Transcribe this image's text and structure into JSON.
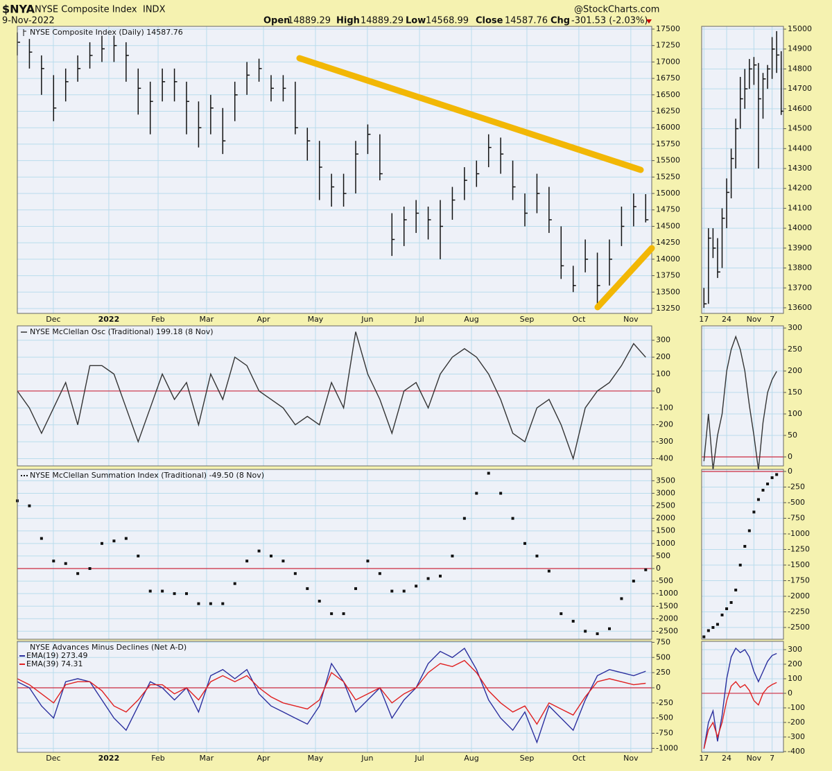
{
  "header": {
    "symbol": "$NYA",
    "name": "NYSE Composite Index",
    "exchange": "INDX",
    "date": "9-Nov-2022",
    "source": "@StockCharts.com",
    "stats": [
      {
        "label": "Open",
        "value": "14889.29"
      },
      {
        "label": "High",
        "value": "14889.29"
      },
      {
        "label": "Low",
        "value": "14568.99"
      },
      {
        "label": "Close",
        "value": "14587.76"
      },
      {
        "label": "Chg",
        "value": "-301.53 (-2.03%)"
      }
    ]
  },
  "chart_data": [
    {
      "type": "ohlc",
      "title": "NYSE Composite Index (Daily) 14587.76",
      "color": "#111111",
      "grid": true,
      "high": [
        17450,
        17350,
        17100,
        16800,
        16900,
        17100,
        17300,
        17400,
        17400,
        17300,
        16900,
        16700,
        16900,
        16900,
        16700,
        16400,
        16500,
        16300,
        16700,
        17000,
        17050,
        16800,
        16800,
        16700,
        16000,
        15800,
        15300,
        15300,
        15800,
        16050,
        15900,
        14700,
        14800,
        14900,
        14800,
        14900,
        15100,
        15400,
        15500,
        15900,
        15850,
        15500,
        15000,
        15300,
        15100,
        14500,
        13900,
        14300,
        14100,
        14300,
        14800,
        15000,
        14990
      ],
      "low": [
        17100,
        16900,
        16500,
        16100,
        16400,
        16700,
        16900,
        17000,
        17000,
        16700,
        16200,
        15900,
        16400,
        16400,
        15900,
        15700,
        15900,
        15600,
        16100,
        16500,
        16700,
        16400,
        16400,
        15900,
        15500,
        14900,
        14800,
        14800,
        15000,
        15600,
        15200,
        14050,
        14200,
        14400,
        14300,
        14000,
        14600,
        14900,
        15100,
        15400,
        15300,
        14900,
        14500,
        14700,
        14400,
        13700,
        13500,
        13800,
        13300,
        13600,
        14200,
        14500,
        14560
      ],
      "close": [
        17300,
        17150,
        16900,
        16300,
        16700,
        16900,
        17100,
        17200,
        17250,
        17100,
        16600,
        16400,
        16700,
        16700,
        16400,
        16000,
        16300,
        15800,
        16500,
        16800,
        16900,
        16600,
        16600,
        16000,
        15800,
        15400,
        15100,
        15000,
        15600,
        15900,
        15300,
        14300,
        14600,
        14700,
        14600,
        14500,
        14900,
        15200,
        15300,
        15700,
        15600,
        15100,
        14700,
        15000,
        14600,
        13900,
        13600,
        14000,
        13600,
        14000,
        14500,
        14800,
        14600
      ],
      "xlim": [
        0,
        52.5
      ],
      "xticks": [
        {
          "value": 2.98,
          "label": "Dec"
        },
        {
          "value": 7.57,
          "label": "2022"
        },
        {
          "value": 11.65,
          "label": "Feb"
        },
        {
          "value": 15.66,
          "label": "Mar"
        },
        {
          "value": 20.37,
          "label": "Apr"
        },
        {
          "value": 24.67,
          "label": "May"
        },
        {
          "value": 28.97,
          "label": "Jun"
        },
        {
          "value": 33.28,
          "label": "Jul"
        },
        {
          "value": 37.58,
          "label": "Aug"
        },
        {
          "value": 42.17,
          "label": "Sep"
        },
        {
          "value": 46.47,
          "label": "Oct"
        },
        {
          "value": 50.77,
          "label": "Nov"
        }
      ],
      "ylim": [
        13176,
        17542
      ],
      "yticks": [
        13250,
        13500,
        13750,
        14000,
        14250,
        14500,
        14750,
        15000,
        15250,
        15500,
        15750,
        16000,
        16250,
        16500,
        16750,
        17000,
        17250,
        17500
      ]
    },
    {
      "type": "ohlc",
      "color": "#111111",
      "grid": true,
      "high": [
        13700,
        14000,
        14000,
        13950,
        14100,
        14250,
        14400,
        14550,
        14760,
        14800,
        14850,
        14860,
        14830,
        14780,
        14820,
        14960,
        14990,
        14889.29
      ],
      "low": [
        13600,
        13620,
        13850,
        13750,
        13800,
        14000,
        14150,
        14300,
        14500,
        14600,
        14700,
        14720,
        14300,
        14550,
        14700,
        14750,
        14780,
        14568.99
      ],
      "close": [
        13620,
        13950,
        13900,
        13780,
        14050,
        14180,
        14350,
        14500,
        14650,
        14700,
        14800,
        14820,
        14650,
        14750,
        14800,
        14900,
        14870,
        14587.76
      ],
      "xlim": [
        -0.5,
        17.5
      ],
      "xticks": [
        {
          "value": 0,
          "label": "17"
        },
        {
          "value": 5,
          "label": "24"
        },
        {
          "value": 11,
          "label": "Nov"
        },
        {
          "value": 15,
          "label": "7"
        }
      ],
      "ylim": [
        13572,
        15014
      ],
      "yticks": [
        13600,
        13700,
        13800,
        13900,
        14000,
        14100,
        14200,
        14300,
        14400,
        14500,
        14600,
        14700,
        14800,
        14900,
        15000
      ]
    },
    {
      "type": "line",
      "title": "NYSE McClellan Osc (Traditional) 199.18 (8 Nov)",
      "grid": true,
      "reference_line": 0,
      "series": [
        {
          "color": "#333333",
          "values": [
            0,
            -100,
            -250,
            -100,
            50,
            -200,
            150,
            150,
            100,
            -100,
            -300,
            -100,
            100,
            -50,
            50,
            -200,
            100,
            -50,
            200,
            150,
            0,
            -50,
            -100,
            -200,
            -150,
            -200,
            50,
            -100,
            350,
            100,
            -50,
            -250,
            0,
            50,
            -100,
            100,
            200,
            250,
            200,
            100,
            -50,
            -250,
            -300,
            -100,
            -50,
            -200,
            -400,
            -100,
            0,
            50,
            150,
            280,
            199.18
          ]
        }
      ],
      "xlim": [
        0,
        52.5
      ],
      "ylim": [
        -443,
        385
      ],
      "yticks": [
        300,
        200,
        100,
        0,
        -100,
        -200,
        -300,
        -400
      ]
    },
    {
      "type": "line",
      "grid": true,
      "reference_line": 0,
      "series": [
        {
          "color": "#333333",
          "values": [
            -10,
            100,
            -30,
            50,
            100,
            200,
            250,
            280,
            250,
            200,
            120,
            50,
            -30,
            80,
            150,
            180,
            199.18
          ]
        }
      ],
      "xlim": [
        -0.5,
        17.5
      ],
      "ylim": [
        -21,
        305
      ],
      "yticks": [
        300,
        250,
        200,
        150,
        100,
        50,
        0
      ]
    },
    {
      "type": "dots",
      "title": "NYSE McClellan Summation Index (Traditional) -49.50 (8 Nov)",
      "grid": true,
      "reference_line": 0,
      "series": [
        {
          "color": "#111111",
          "values": [
            2700,
            2500,
            1200,
            300,
            200,
            -200,
            0,
            1000,
            1100,
            1200,
            500,
            -900,
            -900,
            -1000,
            -1000,
            -1400,
            -1400,
            -1400,
            -600,
            300,
            700,
            500,
            300,
            -200,
            -800,
            -1300,
            -1800,
            -1800,
            -800,
            300,
            -200,
            -900,
            -900,
            -700,
            -400,
            -300,
            500,
            2000,
            3000,
            3800,
            3000,
            2000,
            1000,
            500,
            -100,
            -1800,
            -2100,
            -2500,
            -2600,
            -2400,
            -1200,
            -500,
            -49.5
          ]
        }
      ],
      "xlim": [
        0,
        52.5
      ],
      "ylim": [
        -2820,
        3953
      ],
      "yticks": [
        3500,
        3000,
        2500,
        2000,
        1500,
        1000,
        500,
        0,
        -500,
        -1000,
        -1500,
        -2000,
        -2500
      ]
    },
    {
      "type": "dots",
      "grid": true,
      "reference_line": 0,
      "series": [
        {
          "color": "#111111",
          "values": [
            -2650,
            -2550,
            -2500,
            -2450,
            -2300,
            -2200,
            -2100,
            -1900,
            -1500,
            -1200,
            -950,
            -650,
            -450,
            -300,
            -200,
            -100,
            -49.5
          ]
        }
      ],
      "xlim": [
        -0.5,
        17.5
      ],
      "ylim": [
        -2689,
        33
      ],
      "yticks": [
        0,
        -250,
        -500,
        -750,
        -1000,
        -1250,
        -1500,
        -1750,
        -2000,
        -2250,
        -2500
      ]
    },
    {
      "type": "line",
      "title": "NYSE Advances Minus Declines (Net A-D)",
      "grid": true,
      "reference_line": 0,
      "series": [
        {
          "name": "EMA(19) 273.49",
          "color": "#2b2f9e",
          "values": [
            100,
            0,
            -300,
            -500,
            100,
            150,
            100,
            -200,
            -500,
            -700,
            -300,
            100,
            0,
            -200,
            0,
            -400,
            200,
            300,
            150,
            300,
            -100,
            -300,
            -400,
            -500,
            -600,
            -300,
            400,
            100,
            -400,
            -200,
            0,
            -500,
            -200,
            0,
            400,
            600,
            500,
            650,
            300,
            -200,
            -500,
            -700,
            -400,
            -900,
            -300,
            -500,
            -700,
            -200,
            200,
            300,
            250,
            200,
            273.49
          ]
        },
        {
          "name": "EMA(39) 74.31",
          "color": "#e02020",
          "values": [
            150,
            50,
            -100,
            -250,
            50,
            100,
            100,
            -50,
            -300,
            -400,
            -200,
            50,
            50,
            -100,
            0,
            -200,
            100,
            200,
            100,
            200,
            0,
            -150,
            -250,
            -300,
            -350,
            -200,
            250,
            100,
            -200,
            -100,
            0,
            -250,
            -100,
            0,
            250,
            400,
            350,
            450,
            250,
            -50,
            -250,
            -400,
            -300,
            -600,
            -250,
            -350,
            -450,
            -150,
            100,
            150,
            100,
            50,
            74.31
          ]
        }
      ],
      "xlim": [
        0,
        52.5
      ],
      "xticks": [
        {
          "value": 2.98,
          "label": "Dec"
        },
        {
          "value": 7.57,
          "label": "2022"
        },
        {
          "value": 11.65,
          "label": "Feb"
        },
        {
          "value": 15.66,
          "label": "Mar"
        },
        {
          "value": 20.37,
          "label": "Apr"
        },
        {
          "value": 24.67,
          "label": "May"
        },
        {
          "value": 28.97,
          "label": "Jun"
        },
        {
          "value": 33.28,
          "label": "Jul"
        },
        {
          "value": 37.58,
          "label": "Aug"
        },
        {
          "value": 42.17,
          "label": "Sep"
        },
        {
          "value": 46.47,
          "label": "Oct"
        },
        {
          "value": 50.77,
          "label": "Nov"
        }
      ],
      "ylim": [
        -1064,
        766
      ],
      "yticks": [
        750,
        500,
        250,
        0,
        -250,
        -500,
        -750,
        -1000
      ]
    },
    {
      "type": "line",
      "grid": true,
      "reference_line": 0,
      "series": [
        {
          "color": "#2b2f9e",
          "values": [
            -380,
            -200,
            -120,
            -330,
            -150,
            100,
            250,
            310,
            280,
            300,
            250,
            150,
            80,
            150,
            220,
            260,
            273.49
          ]
        },
        {
          "color": "#e02020",
          "values": [
            -380,
            -250,
            -200,
            -300,
            -200,
            -50,
            50,
            80,
            40,
            60,
            20,
            -50,
            -80,
            0,
            40,
            60,
            74.31
          ]
        }
      ],
      "xlim": [
        -0.5,
        17.5
      ],
      "xticks": [
        {
          "value": 0,
          "label": "17"
        },
        {
          "value": 5,
          "label": "24"
        },
        {
          "value": 11,
          "label": "Nov"
        },
        {
          "value": 15,
          "label": "7"
        }
      ],
      "ylim": [
        -405,
        357
      ],
      "yticks": [
        300,
        200,
        100,
        0,
        -100,
        -200,
        -300,
        -400
      ]
    }
  ]
}
